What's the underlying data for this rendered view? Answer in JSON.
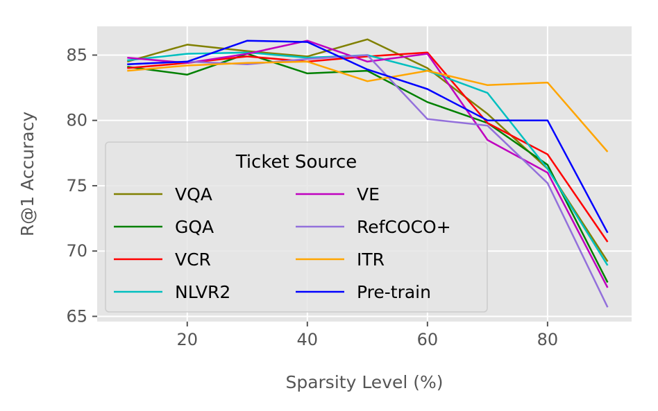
{
  "chart_data": {
    "type": "line",
    "title": "",
    "xlabel": "Sparsity Level (%)",
    "ylabel": "R@1 Accuracy",
    "xlim": [
      5,
      94
    ],
    "ylim": [
      64.6,
      87.2
    ],
    "xticks": [
      20,
      40,
      60,
      80
    ],
    "yticks": [
      65,
      70,
      75,
      80,
      85
    ],
    "grid": true,
    "background": "#e5e5e5",
    "legend": {
      "title": "Ticket Source",
      "placement": "lower-left",
      "columns": 2
    },
    "x": [
      10,
      20,
      30,
      40,
      50,
      60,
      70,
      80,
      90
    ],
    "series": [
      {
        "name": "VQA",
        "color": "#808000",
        "values": [
          84.5,
          85.8,
          85.3,
          84.9,
          86.2,
          84.0,
          80.5,
          76.3,
          69.2
        ]
      },
      {
        "name": "GQA",
        "color": "#008000",
        "values": [
          84.1,
          83.5,
          85.1,
          83.6,
          83.8,
          81.4,
          79.8,
          76.6,
          67.6
        ]
      },
      {
        "name": "VCR",
        "color": "#ff0000",
        "values": [
          84.0,
          84.4,
          84.9,
          84.5,
          84.9,
          85.2,
          79.8,
          77.4,
          70.7
        ]
      },
      {
        "name": "NLVR2",
        "color": "#00bfbf",
        "values": [
          84.6,
          85.1,
          85.2,
          84.8,
          85.0,
          83.8,
          82.1,
          76.3,
          68.9
        ]
      },
      {
        "name": "VE",
        "color": "#bf00bf",
        "values": [
          84.8,
          84.4,
          85.1,
          86.1,
          84.5,
          85.1,
          78.5,
          76.0,
          67.2
        ]
      },
      {
        "name": "RefCOCO+",
        "color": "#9370db",
        "values": [
          84.3,
          84.5,
          84.3,
          84.7,
          85.0,
          80.1,
          79.6,
          75.2,
          65.7
        ]
      },
      {
        "name": "ITR",
        "color": "#ffa500",
        "values": [
          83.8,
          84.2,
          84.4,
          84.5,
          83.0,
          83.8,
          82.7,
          82.9,
          77.6
        ]
      },
      {
        "name": "Pre-train",
        "color": "#0000ff",
        "values": [
          84.3,
          84.5,
          86.1,
          86.0,
          83.9,
          82.4,
          80.0,
          80.0,
          71.4
        ]
      }
    ]
  }
}
